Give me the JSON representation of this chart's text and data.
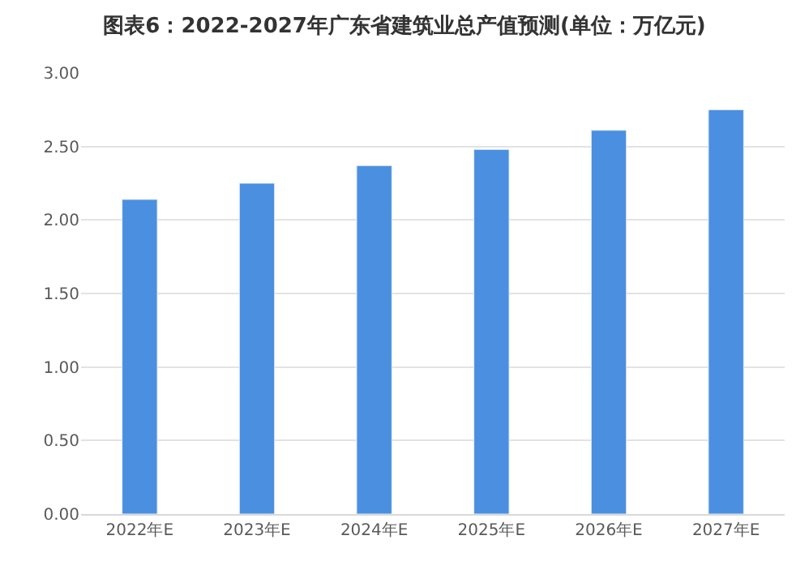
{
  "chart_data": {
    "type": "bar",
    "title": "图表6：2022-2027年广东省建筑业总产值预测(单位：万亿元)",
    "categories": [
      "2022年E",
      "2023年E",
      "2024年E",
      "2025年E",
      "2026年E",
      "2027年E"
    ],
    "values": [
      2.14,
      2.25,
      2.37,
      2.48,
      2.61,
      2.75
    ],
    "color": "#4a8fe0",
    "ylim": [
      0,
      3
    ],
    "yticks": [
      {
        "value": 0,
        "label": "0.00"
      },
      {
        "value": 0.5,
        "label": "0.50"
      },
      {
        "value": 1,
        "label": "1.00"
      },
      {
        "value": 1.5,
        "label": "1.50"
      },
      {
        "value": 2,
        "label": "2.00"
      },
      {
        "value": 2.5,
        "label": "2.50"
      },
      {
        "value": 3,
        "label": "3.00"
      }
    ],
    "grid": "y",
    "legend": false
  }
}
